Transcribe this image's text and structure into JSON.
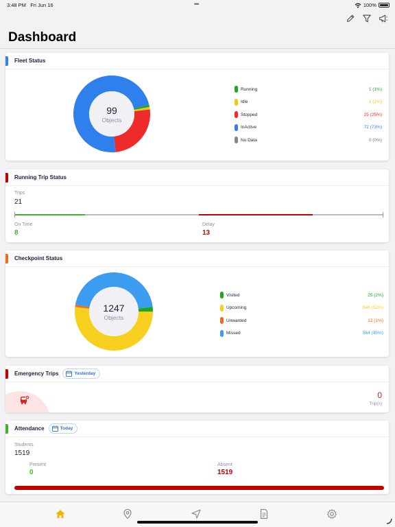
{
  "status_bar": {
    "time": "3:48 PM",
    "date": "Fri Jun 16",
    "dots": "•••",
    "battery": "100%"
  },
  "header": {
    "title": "Dashboard",
    "icons": [
      "pencil-icon",
      "filter-icon",
      "megaphone-icon"
    ]
  },
  "fleet_status": {
    "title": "Fleet Status",
    "accent": "#2f80ed",
    "total": "99",
    "total_label": "Objects",
    "items": [
      {
        "label": "Running",
        "value": "1 (1%)",
        "color": "#1fa81f",
        "count": 1
      },
      {
        "label": "Idle",
        "value": "1 (1%)",
        "color": "#f2c618",
        "count": 1
      },
      {
        "label": "Stopped",
        "value": "25 (25%)",
        "color": "#ee2b2b",
        "count": 25
      },
      {
        "label": "InActive",
        "value": "72 (73%)",
        "color": "#2f80ed",
        "count": 72
      },
      {
        "label": "No Data",
        "value": "0 (0%)",
        "color": "#888888",
        "count": 0
      }
    ]
  },
  "running_trip_status": {
    "title": "Running Trip Status",
    "accent": "#c00000",
    "trips_label": "Trips",
    "trips_value": "21",
    "on_time_label": "On Time",
    "on_time_value": "8",
    "delay_label": "Delay",
    "delay_value": "13",
    "on_time_color": "#3fb52a",
    "delay_color": "#c00000"
  },
  "checkpoint_status": {
    "title": "Checkpoint Status",
    "accent": "#f26a1b",
    "total": "1247",
    "total_label": "Objects",
    "items": [
      {
        "label": "Visited",
        "value": "25 (2%)",
        "color": "#1fa81f",
        "count": 25
      },
      {
        "label": "Upcoming",
        "value": "646 (52%)",
        "color": "#f7cf1f",
        "count": 646
      },
      {
        "label": "Unwanted",
        "value": "12 (1%)",
        "color": "#f26a1b",
        "count": 12
      },
      {
        "label": "Missed",
        "value": "564 (45%)",
        "color": "#3b9cf0",
        "count": 564
      }
    ]
  },
  "emergency_trips": {
    "title": "Emergency Trips",
    "accent": "#c00000",
    "filter": "Yesterday",
    "count": "0",
    "count_label": "Trip(s)"
  },
  "attendance": {
    "title": "Attendance",
    "accent": "#3fb52a",
    "filter": "Today",
    "students_label": "Students",
    "students_value": "1519",
    "present_label": "Present",
    "present_value": "0",
    "absent_label": "Absent",
    "absent_value": "1519",
    "present_fraction": 0,
    "absent_fraction": 1
  },
  "tab_bar": {
    "tabs": [
      "home-icon",
      "location-pin-icon",
      "navigation-arrow-icon",
      "document-icon",
      "settings-gear-icon"
    ],
    "active": "home-icon",
    "active_color": "#f5b400"
  }
}
